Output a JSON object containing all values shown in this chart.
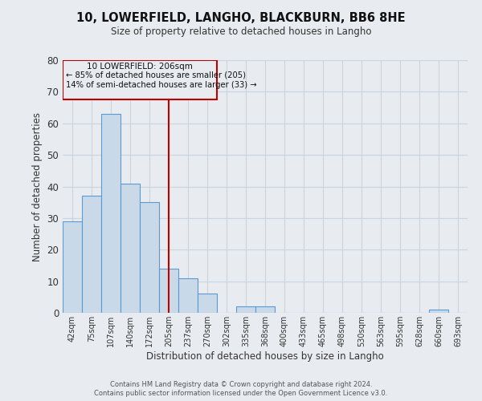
{
  "title": "10, LOWERFIELD, LANGHO, BLACKBURN, BB6 8HE",
  "subtitle": "Size of property relative to detached houses in Langho",
  "xlabel": "Distribution of detached houses by size in Langho",
  "ylabel": "Number of detached properties",
  "bar_labels": [
    "42sqm",
    "75sqm",
    "107sqm",
    "140sqm",
    "172sqm",
    "205sqm",
    "237sqm",
    "270sqm",
    "302sqm",
    "335sqm",
    "368sqm",
    "400sqm",
    "433sqm",
    "465sqm",
    "498sqm",
    "530sqm",
    "563sqm",
    "595sqm",
    "628sqm",
    "660sqm",
    "693sqm"
  ],
  "bar_values": [
    29,
    37,
    63,
    41,
    35,
    14,
    11,
    6,
    0,
    2,
    2,
    0,
    0,
    0,
    0,
    0,
    0,
    0,
    0,
    1,
    0
  ],
  "bar_color": "#c9d9e8",
  "bar_edge_color": "#5b9bd5",
  "ylim": [
    0,
    80
  ],
  "property_line_x": 5.0,
  "property_line_color": "#c00000",
  "annotation_title": "10 LOWERFIELD: 206sqm",
  "annotation_line1": "← 85% of detached houses are smaller (205)",
  "annotation_line2": "14% of semi-detached houses are larger (33) →",
  "annotation_box_color": "#c00000",
  "footer_line1": "Contains HM Land Registry data © Crown copyright and database right 2024.",
  "footer_line2": "Contains public sector information licensed under the Open Government Licence v3.0.",
  "bg_color": "#e8ecf0",
  "plot_bg_color": "#e8ecf0"
}
